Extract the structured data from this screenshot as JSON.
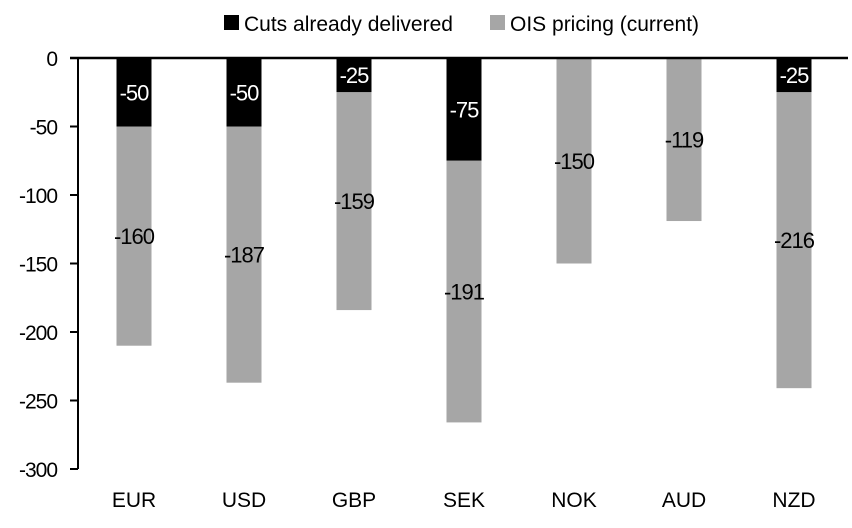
{
  "chart_data": {
    "type": "bar",
    "stacked": true,
    "categories": [
      "EUR",
      "USD",
      "GBP",
      "SEK",
      "NOK",
      "AUD",
      "NZD"
    ],
    "series": [
      {
        "name": "Cuts already delivered",
        "color": "#000000",
        "label_color": "#ffffff",
        "values": [
          -50,
          -50,
          -25,
          -75,
          0,
          0,
          -25
        ]
      },
      {
        "name": "OIS pricing (current)",
        "color": "#a6a6a6",
        "label_color": "#000000",
        "values": [
          -160,
          -187,
          -159,
          -191,
          -150,
          -119,
          -216
        ]
      }
    ],
    "ylim": [
      -300,
      0
    ],
    "yticks": [
      0,
      -50,
      -100,
      -150,
      -200,
      -250,
      -300
    ],
    "grid": false,
    "legend": "top",
    "title": "",
    "xlabel": "",
    "ylabel": ""
  }
}
